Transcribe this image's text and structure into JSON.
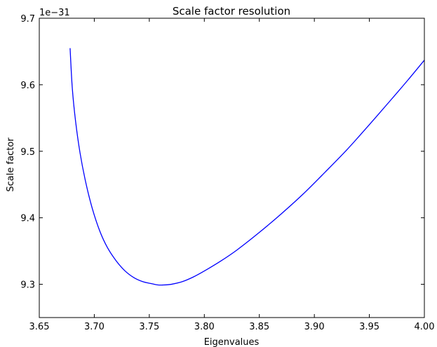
{
  "chart_data": {
    "type": "line",
    "title": "Scale factor resolution",
    "xlabel": "Eigenvalues",
    "ylabel": "Scale factor",
    "y_offset_label": "1e−31",
    "xlim": [
      3.65,
      4.0
    ],
    "ylim": [
      9.25,
      9.7
    ],
    "xticks": [
      3.65,
      3.7,
      3.75,
      3.8,
      3.85,
      3.9,
      3.95,
      4.0
    ],
    "xtick_labels": [
      "3.65",
      "3.70",
      "3.75",
      "3.80",
      "3.85",
      "3.90",
      "3.95",
      "4.00"
    ],
    "yticks": [
      9.3,
      9.4,
      9.5,
      9.6,
      9.7
    ],
    "ytick_labels": [
      "9.3",
      "9.4",
      "9.5",
      "9.6",
      "9.7"
    ],
    "grid": false,
    "line_color": "#0000ff",
    "series": [
      {
        "x": [
          3.678,
          3.68,
          3.683,
          3.687,
          3.692,
          3.698,
          3.705,
          3.712,
          3.72,
          3.728,
          3.736,
          3.744,
          3.752,
          3.758,
          3.763,
          3.77,
          3.78,
          3.79,
          3.8,
          3.815,
          3.83,
          3.85,
          3.87,
          3.89,
          3.91,
          3.93,
          3.95,
          3.97,
          3.985,
          4.0
        ],
        "y": [
          9.655,
          9.595,
          9.545,
          9.498,
          9.455,
          9.415,
          9.38,
          9.355,
          9.335,
          9.32,
          9.31,
          9.304,
          9.301,
          9.299,
          9.299,
          9.3,
          9.304,
          9.311,
          9.32,
          9.335,
          9.352,
          9.378,
          9.406,
          9.436,
          9.469,
          9.503,
          9.54,
          9.578,
          9.607,
          9.637
        ]
      }
    ]
  }
}
